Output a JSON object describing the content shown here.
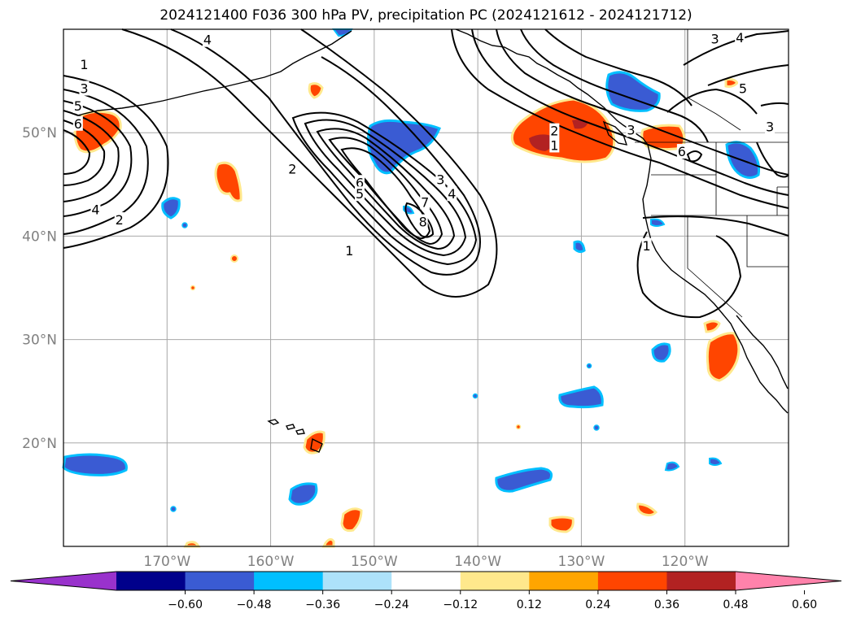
{
  "title": "2024121400 F036 300 hPa PV, precipitation PC (2024121612 - 2024121712)",
  "map": {
    "lon_range": [
      -180,
      -110
    ],
    "lat_range": [
      10,
      60
    ],
    "lat_labels": [
      {
        "lat": 50,
        "text": "50°N"
      },
      {
        "lat": 40,
        "text": "40°N"
      },
      {
        "lat": 30,
        "text": "30°N"
      },
      {
        "lat": 20,
        "text": "20°N"
      }
    ],
    "lon_labels": [
      {
        "lon": -170,
        "text": "170°W"
      },
      {
        "lon": -160,
        "text": "160°W"
      },
      {
        "lon": -150,
        "text": "150°W"
      },
      {
        "lon": -140,
        "text": "140°W"
      },
      {
        "lon": -130,
        "text": "130°W"
      },
      {
        "lon": -120,
        "text": "120°W"
      }
    ]
  },
  "pv_contour_labels": [
    {
      "text": "1",
      "lon": -178,
      "lat": 56.6
    },
    {
      "text": "3",
      "lon": -178,
      "lat": 54.3
    },
    {
      "text": "5",
      "lon": -178.6,
      "lat": 52.6
    },
    {
      "text": "6",
      "lon": -178.6,
      "lat": 50.9
    },
    {
      "text": "4",
      "lon": -176.9,
      "lat": 42.6
    },
    {
      "text": "2",
      "lon": -174.6,
      "lat": 41.6
    },
    {
      "text": "4",
      "lon": -166.1,
      "lat": 59.0
    },
    {
      "text": "2",
      "lon": -157.9,
      "lat": 46.5
    },
    {
      "text": "6",
      "lon": -151.4,
      "lat": 45.2
    },
    {
      "text": "5",
      "lon": -151.4,
      "lat": 44.1
    },
    {
      "text": "1",
      "lon": -152.4,
      "lat": 38.6
    },
    {
      "text": "3",
      "lon": -143.6,
      "lat": 45.5
    },
    {
      "text": "4",
      "lon": -142.5,
      "lat": 44.1
    },
    {
      "text": "7",
      "lon": -145.1,
      "lat": 43.3
    },
    {
      "text": "8",
      "lon": -145.3,
      "lat": 41.4
    },
    {
      "text": "2",
      "lon": -132.6,
      "lat": 50.2
    },
    {
      "text": "1",
      "lon": -132.6,
      "lat": 48.8
    },
    {
      "text": "3",
      "lon": -125.2,
      "lat": 50.3
    },
    {
      "text": "6",
      "lon": -120.3,
      "lat": 48.2
    },
    {
      "text": "3",
      "lon": -117.1,
      "lat": 59.1
    },
    {
      "text": "4",
      "lon": -114.7,
      "lat": 59.2
    },
    {
      "text": "5",
      "lon": -114.4,
      "lat": 54.3
    },
    {
      "text": "3",
      "lon": -111.8,
      "lat": 50.6
    },
    {
      "text": "1",
      "lon": -123.7,
      "lat": 39.1
    }
  ],
  "colorbar": {
    "colors": [
      "#9932CC",
      "#00008B",
      "#3A5BD3",
      "#00BFFF",
      "#ADE2FA",
      "#FFFFFF",
      "#FFE88C",
      "#FFA500",
      "#FF4500",
      "#B22222",
      "#FF82AB"
    ],
    "ticks": [
      "−0.60",
      "−0.48",
      "−0.36",
      "−0.24",
      "−0.12",
      "0.12",
      "0.24",
      "0.36",
      "0.48",
      "0.60"
    ]
  }
}
